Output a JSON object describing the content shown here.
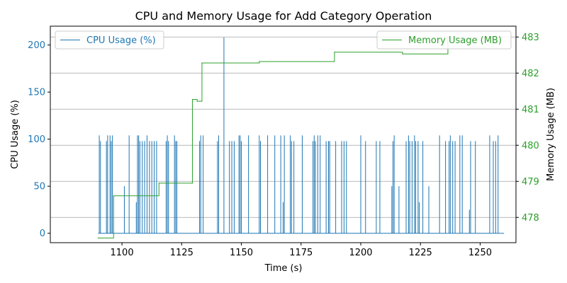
{
  "chart_data": {
    "type": "line",
    "title": "CPU and Memory Usage for Add Category Operation",
    "xlabel": "Time (s)",
    "ylabel_left": "CPU Usage (%)",
    "ylabel_right": "Memory Usage (MB)",
    "xlim": [
      1070,
      1265
    ],
    "ylim_left": [
      -10,
      220
    ],
    "ylim_right": [
      477.3,
      483.3
    ],
    "xticks": [
      1100,
      1125,
      1150,
      1175,
      1200,
      1225,
      1250
    ],
    "yticks_left": [
      0,
      50,
      100,
      150,
      200
    ],
    "yticks_right": [
      478,
      479,
      480,
      481,
      482,
      483
    ],
    "grid": "horizontal gridlines at right axis ticks",
    "colors": {
      "cpu": "#1f77b4",
      "memory": "#2ca02c",
      "grid": "#b0b0b0"
    },
    "legend": [
      {
        "name": "CPU Usage (%)",
        "placement": "upper left"
      },
      {
        "name": "Memory Usage (MB)",
        "placement": "upper right"
      }
    ],
    "series": [
      {
        "name": "CPU Usage (%)",
        "axis": "left",
        "spikes": [
          [
            1090.5,
            104
          ],
          [
            1091,
            98
          ],
          [
            1093.5,
            98
          ],
          [
            1094,
            104
          ],
          [
            1095,
            104
          ],
          [
            1095.5,
            98
          ],
          [
            1096,
            104
          ],
          [
            1101,
            50
          ],
          [
            1103,
            104
          ],
          [
            1106,
            33
          ],
          [
            1106.5,
            104
          ],
          [
            1107,
            104
          ],
          [
            1107.5,
            98
          ],
          [
            1108.5,
            98
          ],
          [
            1109.5,
            98
          ],
          [
            1110.5,
            104
          ],
          [
            1111.5,
            98
          ],
          [
            1112.5,
            98
          ],
          [
            1113.5,
            98
          ],
          [
            1114.5,
            98
          ],
          [
            1118.5,
            98
          ],
          [
            1119,
            104
          ],
          [
            1119.5,
            98
          ],
          [
            1122,
            104
          ],
          [
            1122.5,
            98
          ],
          [
            1123,
            98
          ],
          [
            1132.5,
            98
          ],
          [
            1133,
            104
          ],
          [
            1134,
            104
          ],
          [
            1140,
            98
          ],
          [
            1140.5,
            104
          ],
          [
            1142.7,
            208
          ],
          [
            1145,
            98
          ],
          [
            1146,
            98
          ],
          [
            1147,
            98
          ],
          [
            1149,
            104
          ],
          [
            1149.5,
            104
          ],
          [
            1150,
            98
          ],
          [
            1153,
            104
          ],
          [
            1157.5,
            104
          ],
          [
            1158,
            98
          ],
          [
            1161,
            104
          ],
          [
            1164,
            104
          ],
          [
            1166.5,
            104
          ],
          [
            1167.5,
            33
          ],
          [
            1168,
            104
          ],
          [
            1170.5,
            104
          ],
          [
            1171,
            98
          ],
          [
            1172,
            98
          ],
          [
            1175.5,
            104
          ],
          [
            1180,
            98
          ],
          [
            1180.5,
            104
          ],
          [
            1181,
            98
          ],
          [
            1182,
            104
          ],
          [
            1183,
            104
          ],
          [
            1185.5,
            98
          ],
          [
            1186.5,
            98
          ],
          [
            1187,
            98
          ],
          [
            1189.5,
            98
          ],
          [
            1192,
            98
          ],
          [
            1193,
            98
          ],
          [
            1194,
            98
          ],
          [
            1200,
            104
          ],
          [
            1202,
            98
          ],
          [
            1206.5,
            98
          ],
          [
            1208,
            98
          ],
          [
            1213,
            50
          ],
          [
            1213.5,
            98
          ],
          [
            1214,
            104
          ],
          [
            1216,
            50
          ],
          [
            1219,
            98
          ],
          [
            1220,
            104
          ],
          [
            1220.5,
            98
          ],
          [
            1221.5,
            98
          ],
          [
            1222.5,
            104
          ],
          [
            1223,
            98
          ],
          [
            1224,
            98
          ],
          [
            1224.5,
            33
          ],
          [
            1226,
            98
          ],
          [
            1228.5,
            50
          ],
          [
            1233,
            104
          ],
          [
            1235.5,
            98
          ],
          [
            1237,
            98
          ],
          [
            1237.5,
            104
          ],
          [
            1238.5,
            98
          ],
          [
            1239.5,
            98
          ],
          [
            1241.5,
            104
          ],
          [
            1242.5,
            104
          ],
          [
            1245.5,
            25
          ],
          [
            1246,
            98
          ],
          [
            1248,
            98
          ],
          [
            1254,
            104
          ],
          [
            1255.5,
            98
          ],
          [
            1256.5,
            98
          ],
          [
            1257.5,
            104
          ]
        ],
        "x_start": 1090,
        "x_end": 1260
      },
      {
        "name": "Memory Usage (MB)",
        "axis": "right",
        "steps": [
          [
            1090,
            477.43
          ],
          [
            1096.5,
            478.6
          ],
          [
            1115.5,
            478.95
          ],
          [
            1129.5,
            481.27
          ],
          [
            1131.5,
            481.22
          ],
          [
            1133.5,
            482.28
          ],
          [
            1157.5,
            482.32
          ],
          [
            1189,
            482.58
          ],
          [
            1217.5,
            482.53
          ],
          [
            1236.5,
            483.0
          ],
          [
            1237,
            483.0
          ]
        ]
      }
    ]
  }
}
